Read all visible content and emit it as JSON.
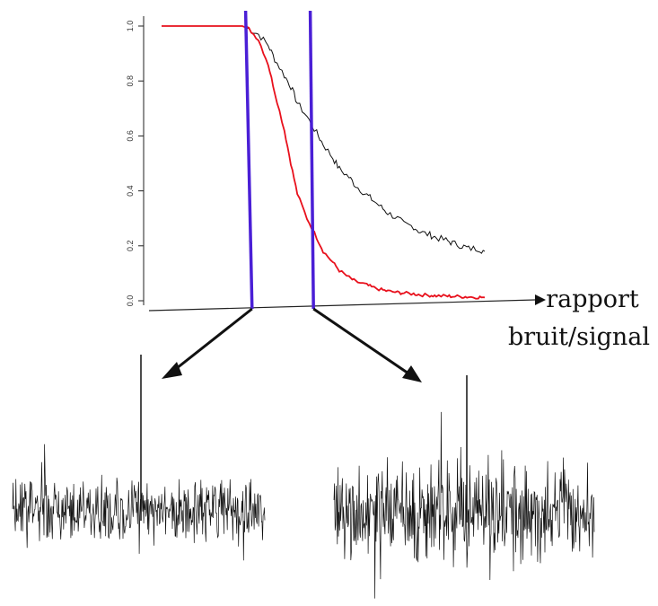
{
  "chart_data": {
    "type": "line",
    "title": "",
    "xlabel": "rapport\nbruit/signal",
    "ylabel": "",
    "x_ticks_shown": false,
    "y_ticks": [
      "0.0",
      "0.2",
      "0.4",
      "0.6",
      "0.8",
      "1.0"
    ],
    "ylim": [
      0,
      1.05
    ],
    "xlim": [
      0,
      100
    ],
    "grid": false,
    "legend": "none",
    "series": [
      {
        "color": "#111111",
        "x": [
          0,
          5,
          10,
          15,
          20,
          25,
          27,
          30,
          33,
          35,
          38,
          40,
          42,
          45,
          48,
          50,
          53,
          55,
          58,
          60,
          63,
          65,
          68,
          70,
          73,
          75,
          78,
          80,
          83,
          85,
          88,
          90,
          93,
          95,
          98,
          100
        ],
        "values": [
          1.0,
          1.0,
          1.0,
          1.0,
          1.0,
          1.0,
          0.99,
          0.97,
          0.93,
          0.88,
          0.82,
          0.78,
          0.72,
          0.67,
          0.61,
          0.57,
          0.52,
          0.48,
          0.45,
          0.42,
          0.39,
          0.37,
          0.34,
          0.32,
          0.3,
          0.28,
          0.27,
          0.25,
          0.24,
          0.23,
          0.22,
          0.21,
          0.2,
          0.19,
          0.19,
          0.18
        ]
      },
      {
        "color": "#e8101c",
        "x": [
          0,
          5,
          10,
          15,
          20,
          25,
          27,
          30,
          33,
          35,
          38,
          40,
          42,
          45,
          48,
          50,
          53,
          55,
          58,
          60,
          63,
          65,
          68,
          70,
          73,
          75,
          78,
          80,
          83,
          85,
          88,
          90,
          93,
          95,
          98,
          100
        ],
        "values": [
          1.0,
          1.0,
          1.0,
          1.0,
          1.0,
          1.0,
          0.99,
          0.95,
          0.86,
          0.76,
          0.62,
          0.5,
          0.39,
          0.3,
          0.23,
          0.18,
          0.14,
          0.11,
          0.085,
          0.07,
          0.06,
          0.05,
          0.04,
          0.035,
          0.03,
          0.028,
          0.025,
          0.022,
          0.02,
          0.018,
          0.017,
          0.016,
          0.015,
          0.014,
          0.013,
          0.012
        ]
      }
    ],
    "markers": [
      {
        "color": "#4a1fd6",
        "x_at_axis": 28,
        "x_at_top": 26
      },
      {
        "color": "#4a1fd6",
        "x_at_axis": 47,
        "x_at_top": 46
      }
    ],
    "insets": [
      {
        "description_color": "#111111",
        "spike": true
      },
      {
        "description_color": "#111111",
        "spike": true
      }
    ]
  }
}
